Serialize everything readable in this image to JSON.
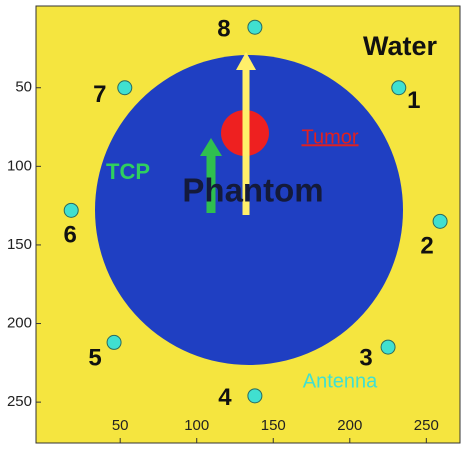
{
  "chart_data": {
    "type": "scatter",
    "labels": {
      "water": "Water",
      "tumor": "Tumor",
      "tcp": "TCP",
      "phantom": "Phantom",
      "antenna": "Antenna"
    },
    "point_labels": [
      "1",
      "2",
      "3",
      "4",
      "5",
      "6",
      "7",
      "8"
    ],
    "x": [
      232,
      259,
      225,
      138,
      46,
      18,
      53,
      138
    ],
    "y": [
      50,
      135,
      215,
      246,
      212,
      128,
      50,
      11.5
    ],
    "color": "#40e0d0",
    "xlim": [
      -5,
      272
    ],
    "ylim": [
      -2,
      276
    ],
    "xticks": [
      50,
      100,
      150,
      200,
      250
    ],
    "yticks": [
      50,
      100,
      150,
      200,
      250
    ],
    "y_reversed": true
  }
}
